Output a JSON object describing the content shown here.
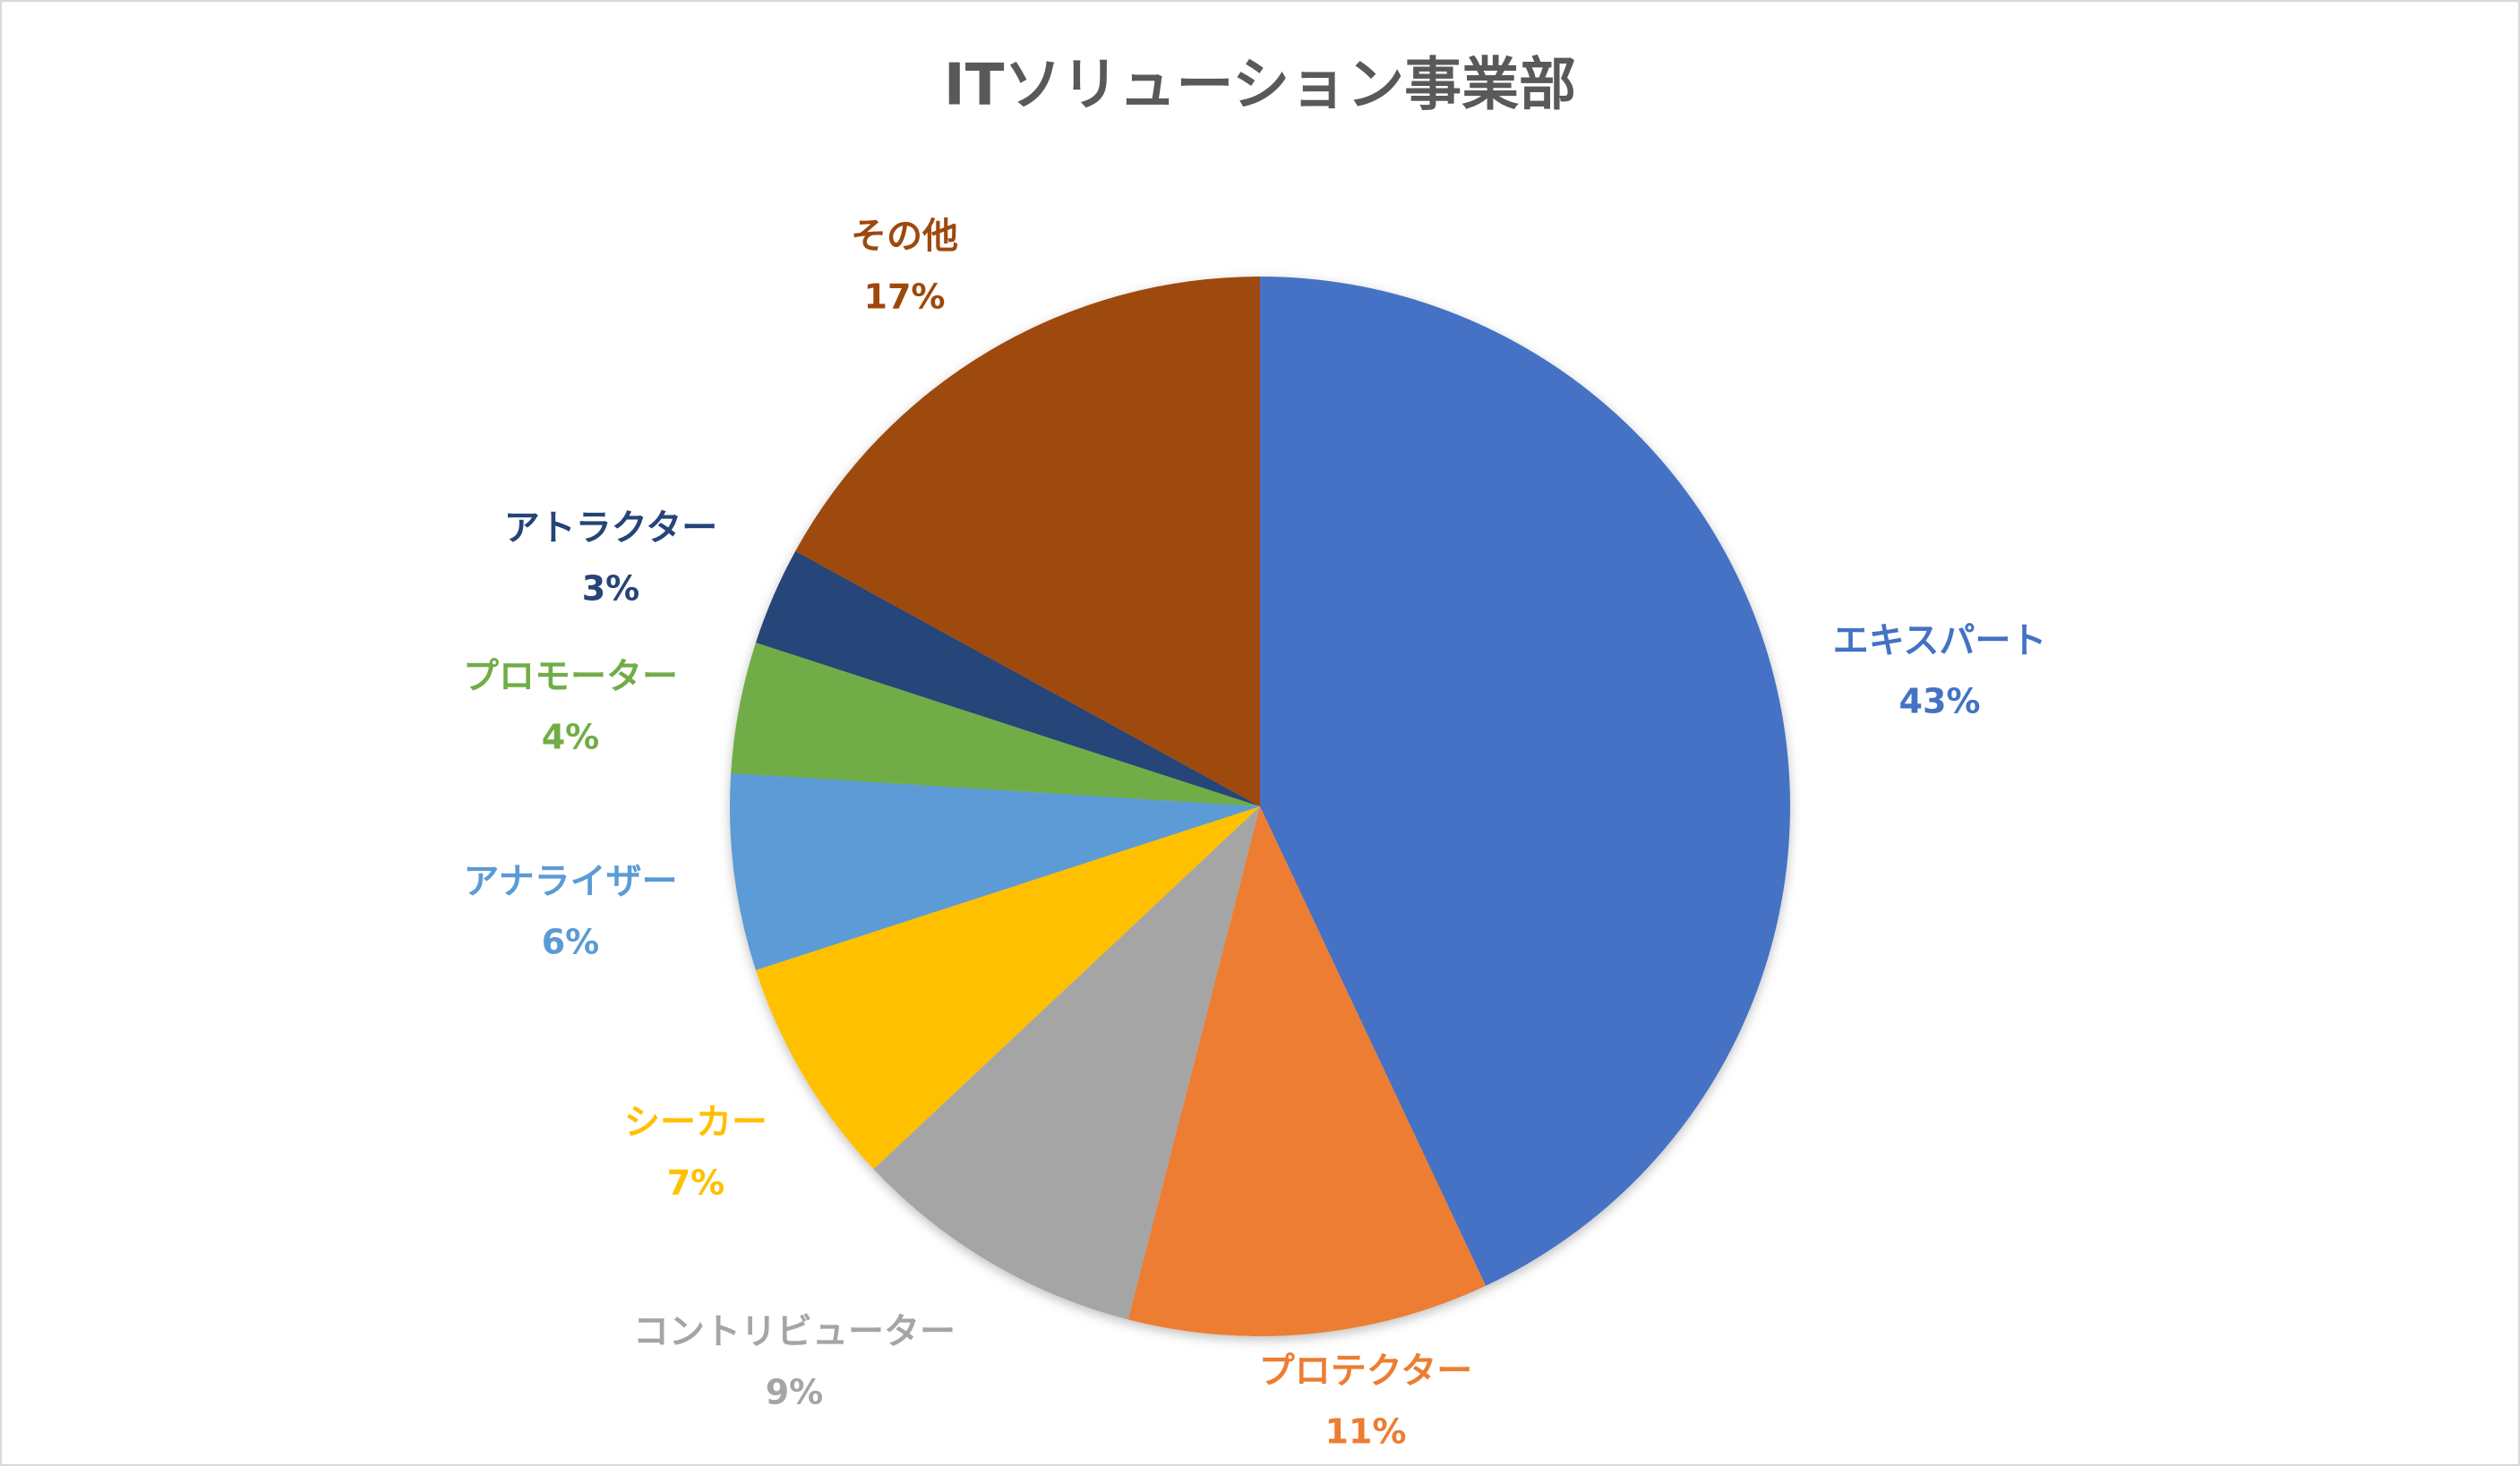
{
  "chart_data": {
    "type": "pie",
    "title": "ITソリューション事業部",
    "categories": [
      "エキスパート",
      "プロテクター",
      "コントリビューター",
      "シーカー",
      "アナライザー",
      "プロモーター",
      "アトラクター",
      "その他"
    ],
    "values": [
      43,
      11,
      9,
      7,
      6,
      4,
      3,
      17
    ],
    "value_labels": [
      "43%",
      "11%",
      "9%",
      "7%",
      "6%",
      "4%",
      "3%",
      "17%"
    ],
    "colors": [
      "#4472C4",
      "#ED7D31",
      "#A5A5A5",
      "#FFC000",
      "#5B9BD5",
      "#70AD47",
      "#264478",
      "#9E480E"
    ]
  }
}
